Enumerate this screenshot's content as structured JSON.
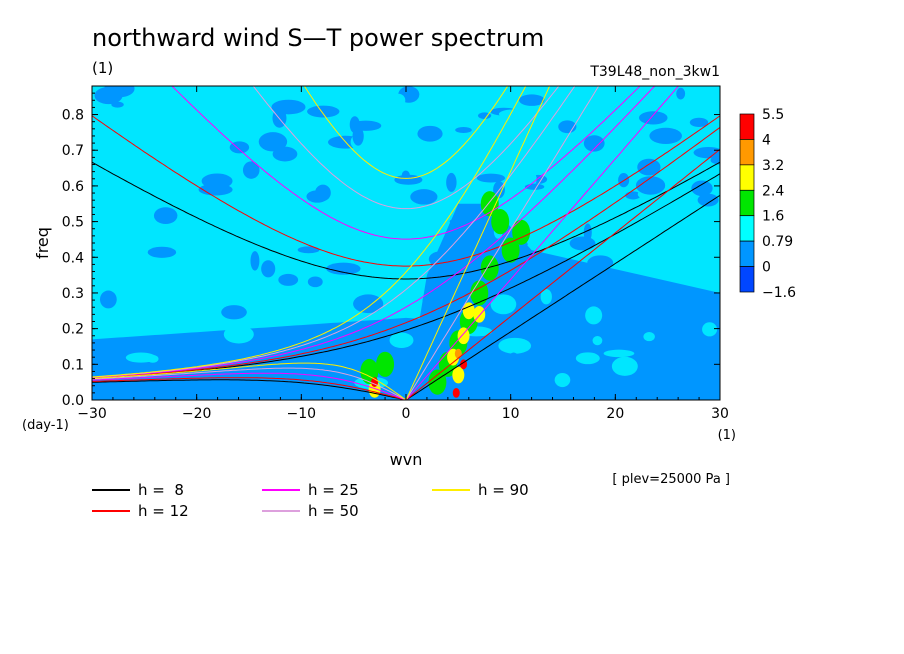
{
  "chart_data": {
    "type": "heatmap",
    "title": "northward wind S—T power spectrum",
    "subtitle_left": "(1)",
    "subtitle_right": "T39L48_non_3kw1",
    "xlabel": "wvn",
    "ylabel": "freq",
    "x_unit": "(1)",
    "y_unit": "(day-1)",
    "xlim": [
      -30,
      30
    ],
    "ylim": [
      0,
      0.88
    ],
    "x_ticks": [
      -30,
      -20,
      -10,
      0,
      10,
      20,
      30
    ],
    "x_tick_labels": [
      "−30",
      "−20",
      "−10",
      "0",
      "10",
      "20",
      "30"
    ],
    "y_ticks": [
      0,
      0.1,
      0.2,
      0.3,
      0.4,
      0.5,
      0.6,
      0.7,
      0.8
    ],
    "y_tick_labels": [
      "0.0",
      "0.1",
      "0.2",
      "0.3",
      "0.4",
      "0.5",
      "0.6",
      "0.7",
      "0.8"
    ],
    "annotation": "[ plev=25000 Pa ]",
    "colorbar": {
      "labels": [
        "5.5",
        "4",
        "3.2",
        "2.4",
        "1.6",
        "0.79",
        "0",
        "−1.6"
      ],
      "colors": [
        "#ff0000",
        "#ff9900",
        "#ffff00",
        "#00e600",
        "#00ffff",
        "#0096ff",
        "#0046ff"
      ]
    },
    "background_color": "#00e6ff",
    "series": [
      {
        "name": "h =  8",
        "h": 8,
        "color": "#000000"
      },
      {
        "name": "h = 12",
        "h": 12,
        "color": "#ff0000"
      },
      {
        "name": "h = 25",
        "h": 25,
        "color": "#ff00ff"
      },
      {
        "name": "h = 50",
        "h": 50,
        "color": "#dda0dd"
      },
      {
        "name": "h = 90",
        "h": 90,
        "color": "#ffee00"
      }
    ]
  }
}
